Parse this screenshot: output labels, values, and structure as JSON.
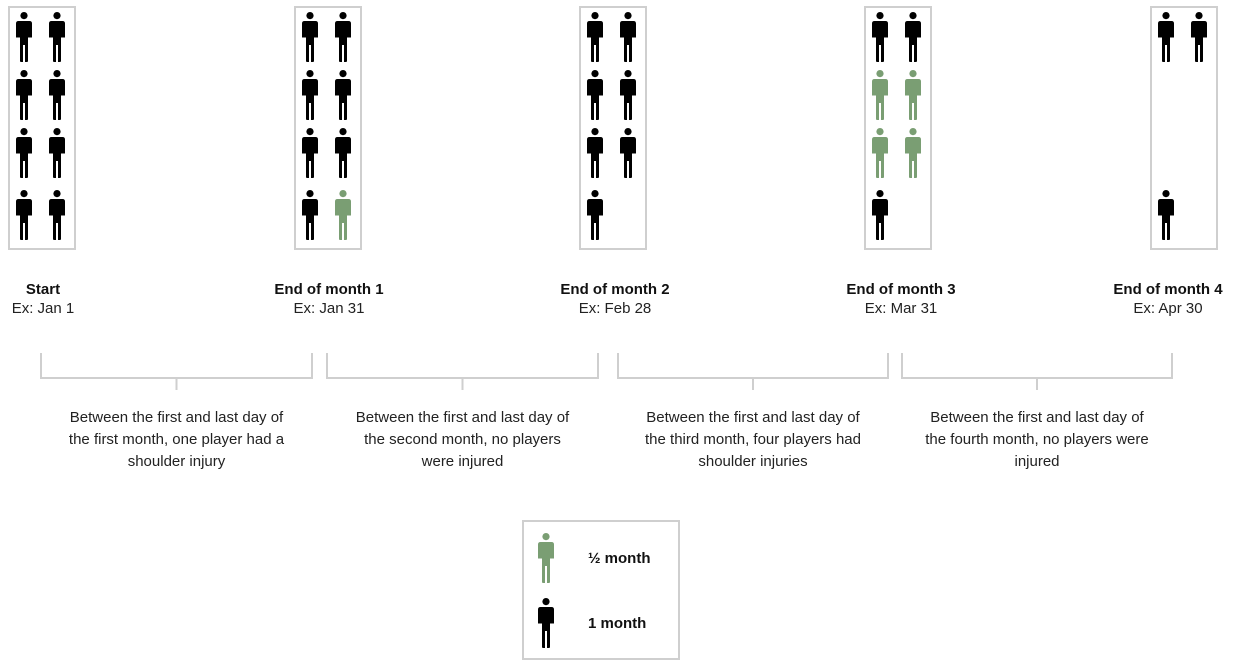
{
  "colors": {
    "player_full": "#000000",
    "player_half": "#7a9e73",
    "panel_border": "#cfcfcf",
    "bracket": "#cfcfcf"
  },
  "stages": [
    {
      "title": "Start",
      "subtitle": "Ex: Jan 1",
      "players": [
        "full",
        "full",
        "full",
        "full",
        "full",
        "full",
        "full",
        "full"
      ],
      "framed": true
    },
    {
      "title": "End of month 1",
      "subtitle": "Ex: Jan 31",
      "players": [
        "full",
        "full",
        "full",
        "full",
        "full",
        "full",
        "full",
        "half"
      ],
      "framed": true
    },
    {
      "title": "End of month 2",
      "subtitle": "Ex: Feb 28",
      "players": [
        "full",
        "full",
        "full",
        "full",
        "full",
        "full",
        "full",
        null
      ],
      "framed": true
    },
    {
      "title": "End of month 3",
      "subtitle": "Ex: Mar 31",
      "players": [
        "full",
        "full",
        "half",
        "half",
        "half",
        "half",
        "full",
        null
      ],
      "framed": true
    },
    {
      "title": "End of month 4",
      "subtitle": "Ex: Apr 30",
      "players": [
        "full",
        "full",
        null,
        null,
        null,
        null,
        "full",
        null
      ],
      "framed": true
    }
  ],
  "periods": [
    {
      "text": "Between the first and last day of the first month, one player had a shoulder injury"
    },
    {
      "text": "Between the first and last day of the second month, no players were injured"
    },
    {
      "text": "Between the first and last day of the third month, four players had shoulder injuries"
    },
    {
      "text": "Between the first and last day of the fourth month, no players were injured"
    }
  ],
  "legend": [
    {
      "kind": "half",
      "label": "½ month"
    },
    {
      "kind": "full",
      "label": "1 month"
    }
  ]
}
